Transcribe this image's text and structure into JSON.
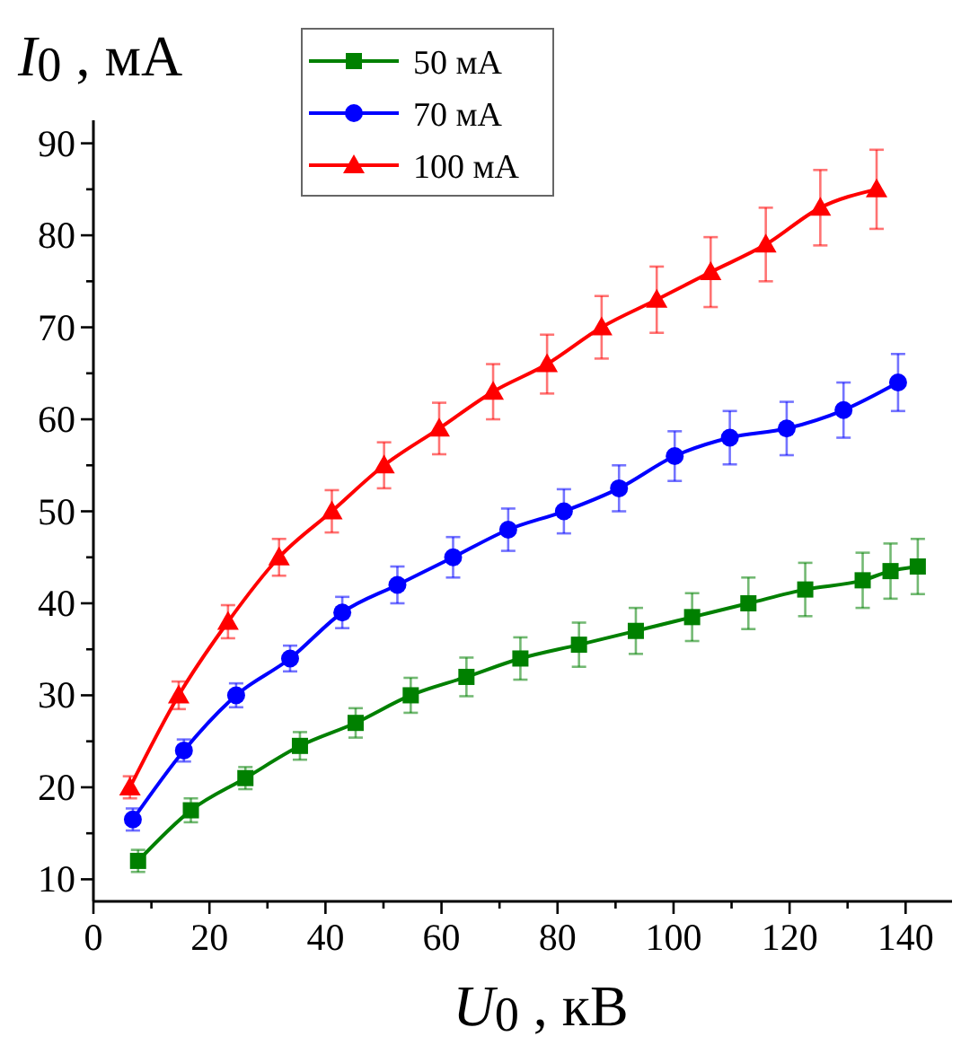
{
  "chart_data": {
    "type": "line",
    "xlabel": "U$_{0}$ , кВ",
    "ylabel": "I$_{0}$ , мА",
    "xlim": [
      0,
      148
    ],
    "ylim": [
      7.6,
      92.5
    ],
    "xticks": [
      0,
      {
        "value": 10,
        "label": null
      },
      20,
      {
        "value": 30,
        "label": null
      },
      40,
      {
        "value": 50,
        "label": null
      },
      60,
      {
        "value": 70,
        "label": null
      },
      80,
      {
        "value": 90,
        "label": null
      },
      100,
      {
        "value": 110,
        "label": null
      },
      120,
      {
        "value": 130,
        "label": null
      },
      140
    ],
    "yticks": [
      10,
      {
        "value": 15,
        "label": null
      },
      20,
      {
        "value": 25,
        "label": null
      },
      30,
      {
        "value": 35,
        "label": null
      },
      40,
      {
        "value": 45,
        "label": null
      },
      50,
      {
        "value": 55,
        "label": null
      },
      60,
      {
        "value": 65,
        "label": null
      },
      70,
      {
        "value": 75,
        "label": null
      },
      80,
      {
        "value": 85,
        "label": null
      },
      90
    ],
    "grid": false,
    "legend": "top",
    "line_style": "solid",
    "series": [
      {
        "name": "50 мА",
        "color": "#008000",
        "marker": "square",
        "x": [
          7.7,
          16.8,
          26.2,
          35.6,
          45.2,
          54.7,
          64.3,
          73.6,
          83.7,
          93.5,
          103.2,
          112.9,
          122.7,
          132.6,
          137.4,
          142.1
        ],
        "values": [
          12,
          17.5,
          21,
          24.5,
          27,
          30,
          32,
          34,
          35.5,
          37,
          38.5,
          40,
          41.5,
          42.5,
          43.5,
          44
        ],
        "errors": [
          1.2,
          1.3,
          1.2,
          1.5,
          1.6,
          1.9,
          2.1,
          2.3,
          2.4,
          2.5,
          2.6,
          2.8,
          2.9,
          3,
          3,
          3
        ]
      },
      {
        "name": "70 мА",
        "color": "#0000ff",
        "marker": "circle",
        "x": [
          6.8,
          15.6,
          24.6,
          33.9,
          42.9,
          52.4,
          62,
          71.5,
          81.1,
          90.6,
          100.2,
          109.7,
          119.5,
          129.3,
          138.7
        ],
        "values": [
          16.5,
          24,
          30,
          34,
          39,
          42,
          45,
          48,
          50,
          52.5,
          56,
          58,
          59,
          61,
          64
        ],
        "errors": [
          1.2,
          1.2,
          1.3,
          1.4,
          1.7,
          2,
          2.2,
          2.3,
          2.4,
          2.5,
          2.7,
          2.9,
          2.9,
          3,
          3.1
        ]
      },
      {
        "name": "100 мА",
        "color": "#ff0000",
        "marker": "triangle",
        "x": [
          6.3,
          14.7,
          23.2,
          32,
          41.1,
          50.1,
          59.6,
          68.9,
          78.2,
          87.6,
          97.1,
          106.4,
          115.9,
          125.3,
          135
        ],
        "values": [
          20,
          30,
          38,
          45,
          50,
          55,
          59,
          63,
          66,
          70,
          73,
          76,
          79,
          83,
          85
        ],
        "errors": [
          1.2,
          1.5,
          1.8,
          2,
          2.3,
          2.5,
          2.8,
          3,
          3.2,
          3.4,
          3.6,
          3.8,
          4,
          4.1,
          4.3
        ]
      }
    ]
  }
}
